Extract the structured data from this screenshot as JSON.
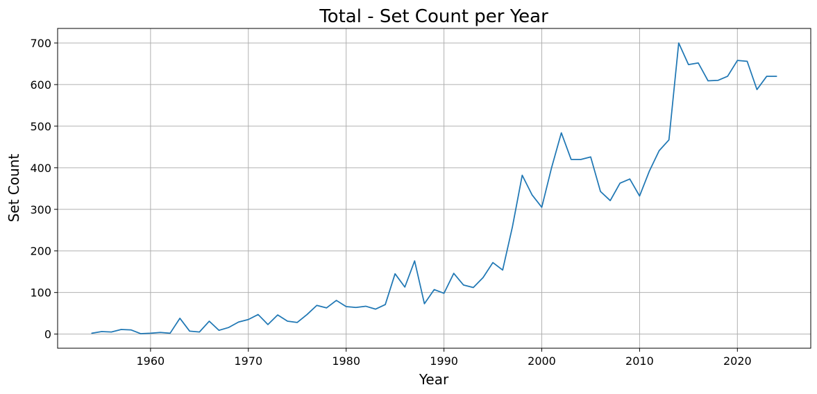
{
  "chart_data": {
    "type": "line",
    "title": "Total - Set Count per Year",
    "xlabel": "Year",
    "ylabel": "Set Count",
    "xlim": [
      1950.5,
      2027.5
    ],
    "ylim": [
      -34,
      735
    ],
    "xticks": [
      1960,
      1970,
      1980,
      1990,
      2000,
      2010,
      2020
    ],
    "xtick_labels": [
      "1960",
      "1970",
      "1980",
      "1990",
      "2000",
      "2010",
      "2020"
    ],
    "yticks": [
      0,
      100,
      200,
      300,
      400,
      500,
      600,
      700
    ],
    "ytick_labels": [
      "0",
      "100",
      "200",
      "300",
      "400",
      "500",
      "600",
      "700"
    ],
    "grid": true,
    "legend": "none",
    "series": [
      {
        "color": "#1f77b4",
        "x": [
          1954,
          1955,
          1956,
          1957,
          1958,
          1959,
          1960,
          1961,
          1962,
          1963,
          1964,
          1965,
          1966,
          1967,
          1968,
          1969,
          1970,
          1971,
          1972,
          1973,
          1974,
          1975,
          1976,
          1977,
          1978,
          1979,
          1980,
          1981,
          1982,
          1983,
          1984,
          1985,
          1986,
          1987,
          1988,
          1989,
          1990,
          1991,
          1992,
          1993,
          1994,
          1995,
          1996,
          1997,
          1998,
          1999,
          2000,
          2001,
          2002,
          2003,
          2004,
          2005,
          2006,
          2007,
          2008,
          2009,
          2010,
          2011,
          2012,
          2013,
          2014,
          2015,
          2016,
          2017,
          2018,
          2019,
          2020,
          2021,
          2022,
          2023,
          2024
        ],
        "values": [
          2,
          6,
          5,
          11,
          10,
          1,
          2,
          4,
          2,
          38,
          7,
          5,
          31,
          9,
          16,
          29,
          35,
          47,
          23,
          46,
          31,
          28,
          47,
          69,
          63,
          81,
          66,
          64,
          67,
          60,
          71,
          145,
          113,
          176,
          73,
          107,
          98,
          146,
          118,
          112,
          136,
          172,
          154,
          258,
          382,
          335,
          305,
          400,
          484,
          420,
          420,
          426,
          343,
          321,
          363,
          373,
          332,
          392,
          441,
          467,
          700,
          648,
          652,
          609,
          610,
          620,
          658,
          656,
          588,
          620,
          620
        ]
      }
    ]
  }
}
